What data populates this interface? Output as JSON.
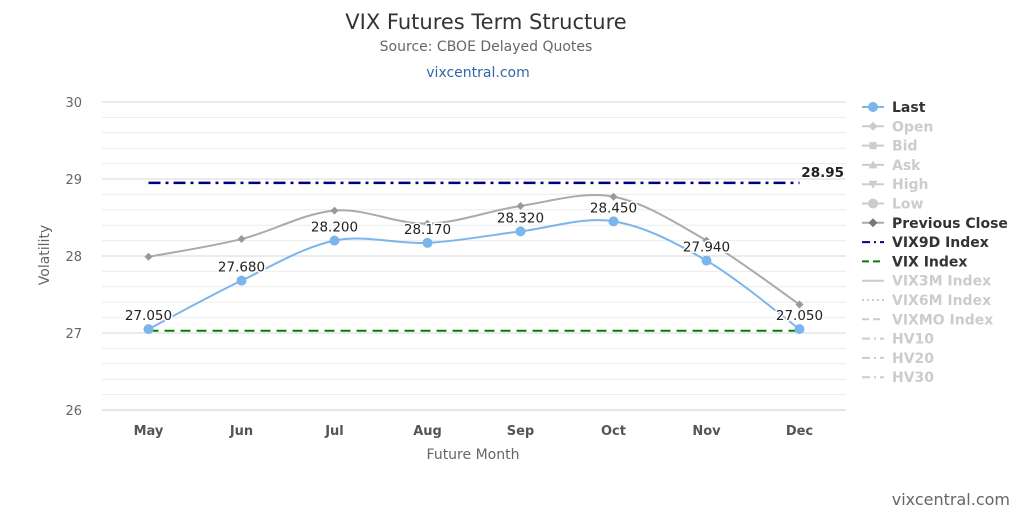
{
  "chart_data": {
    "type": "line",
    "title": "VIX Futures Term Structure",
    "subtitle": "Source: CBOE Delayed Quotes",
    "link": "vixcentral.com",
    "credit": "vixcentral.com",
    "xlabel": "Future Month",
    "ylabel": "Volatility",
    "ylim": [
      26,
      30
    ],
    "yticks": [
      "26",
      "27",
      "28",
      "29",
      "30"
    ],
    "categories": [
      "May",
      "Jun",
      "Jul",
      "Aug",
      "Sep",
      "Oct",
      "Nov",
      "Dec"
    ],
    "grid": true,
    "legend_position": "right",
    "series": [
      {
        "name": "Last",
        "type": "spline",
        "color": "#7cb5ec",
        "marker": "circle",
        "visible": true,
        "values": [
          27.05,
          27.68,
          28.2,
          28.17,
          28.32,
          28.45,
          27.94,
          27.05
        ],
        "labels": [
          "27.050",
          "27.680",
          "28.200",
          "28.170",
          "28.320",
          "28.450",
          "27.940",
          "27.050"
        ]
      },
      {
        "name": "Open",
        "color": "#cccccc",
        "marker": "diamond",
        "visible": false
      },
      {
        "name": "Bid",
        "color": "#cccccc",
        "marker": "square",
        "visible": false
      },
      {
        "name": "Ask",
        "color": "#cccccc",
        "marker": "triangle",
        "visible": false
      },
      {
        "name": "High",
        "color": "#cccccc",
        "marker": "triangle-down",
        "visible": false
      },
      {
        "name": "Low",
        "color": "#cccccc",
        "marker": "circle",
        "visible": false
      },
      {
        "name": "Previous Close",
        "type": "spline",
        "color": "#aaaaaa",
        "marker": "diamond",
        "visible": true,
        "values": [
          27.99,
          28.22,
          28.59,
          28.42,
          28.65,
          28.77,
          28.2,
          27.37
        ]
      },
      {
        "name": "VIX9D Index",
        "color": "#000080",
        "dash": "dashdot",
        "visible": true,
        "value": 28.95,
        "label": "28.95"
      },
      {
        "name": "VIX Index",
        "color": "#008000",
        "dash": "dash",
        "visible": true,
        "value": 27.03
      },
      {
        "name": "VIX3M Index",
        "color": "#cccccc",
        "dash": "solid",
        "visible": false
      },
      {
        "name": "VIX6M Index",
        "color": "#cccccc",
        "dash": "dot",
        "visible": false
      },
      {
        "name": "VIXMO Index",
        "color": "#cccccc",
        "dash": "dash",
        "visible": false
      },
      {
        "name": "HV10",
        "color": "#cccccc",
        "dash": "dashdot",
        "visible": false
      },
      {
        "name": "HV20",
        "color": "#cccccc",
        "dash": "dashdot",
        "visible": false
      },
      {
        "name": "HV30",
        "color": "#cccccc",
        "dash": "dashdot",
        "visible": false
      }
    ]
  }
}
